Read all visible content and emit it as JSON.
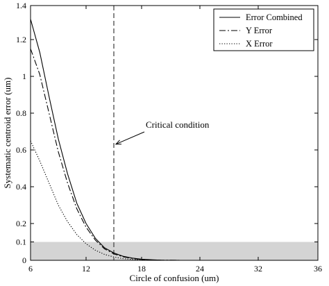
{
  "chart_data": {
    "type": "line",
    "title": "",
    "xlabel": "Circle of confusion (um)",
    "ylabel": "Systematic centroid error (um)",
    "xlim": [
      6,
      36
    ],
    "ylim": [
      0,
      1.4
    ],
    "x_ticks": [
      6,
      12,
      18,
      24,
      32,
      36
    ],
    "x_tick_labels": [
      "6",
      "12",
      "18",
      "24",
      "32",
      "36"
    ],
    "y_ticks": [
      0,
      0.1,
      0.2,
      0.4,
      0.6,
      0.8,
      1,
      1.2,
      1.4
    ],
    "y_tick_labels": [
      "0",
      "0.1",
      "0.2",
      "0.4",
      "0.6",
      "0.8",
      "1",
      "1.2",
      "1.4"
    ],
    "grid": false,
    "legend_position": "top-right",
    "shaded_band": {
      "y_from": 0,
      "y_to": 0.1,
      "color": "#d4d4d4"
    },
    "critical_line": {
      "x": 15,
      "style": "dashed",
      "color": "#555555"
    },
    "annotation": {
      "text": "Critical condition",
      "arrow_to": [
        15,
        0.62
      ]
    },
    "series": [
      {
        "name": "Error Combined",
        "style": "solid",
        "color": "#000000",
        "x": [
          6,
          7,
          8,
          9,
          10,
          11,
          12,
          13,
          14,
          15,
          16,
          17,
          18,
          19,
          20,
          22,
          24,
          28,
          32,
          36
        ],
        "y": [
          1.32,
          1.13,
          0.89,
          0.66,
          0.47,
          0.31,
          0.2,
          0.12,
          0.068,
          0.04,
          0.022,
          0.012,
          0.006,
          0.003,
          0.001,
          0.0,
          0.0,
          0.0,
          0.0,
          0.0
        ]
      },
      {
        "name": "Y Error",
        "style": "dashdot",
        "color": "#000000",
        "x": [
          6,
          7,
          8,
          9,
          10,
          11,
          12,
          13,
          14,
          15,
          16,
          17,
          18,
          19,
          20,
          22,
          24,
          28,
          32,
          36
        ],
        "y": [
          1.15,
          1.01,
          0.8,
          0.59,
          0.42,
          0.28,
          0.18,
          0.11,
          0.062,
          0.035,
          0.019,
          0.01,
          0.005,
          0.002,
          0.001,
          0.0,
          0.0,
          0.0,
          0.0,
          0.0
        ]
      },
      {
        "name": "X Error",
        "style": "dotted",
        "color": "#000000",
        "x": [
          6,
          7,
          8,
          9,
          10,
          11,
          12,
          13,
          14,
          15,
          16,
          17,
          18,
          19,
          20,
          22,
          24,
          28,
          32,
          36
        ],
        "y": [
          0.65,
          0.54,
          0.42,
          0.3,
          0.21,
          0.14,
          0.09,
          0.055,
          0.032,
          0.018,
          0.009,
          0.005,
          0.002,
          0.001,
          0.0,
          0.0,
          0.0,
          0.0,
          0.0,
          0.0
        ]
      }
    ]
  }
}
